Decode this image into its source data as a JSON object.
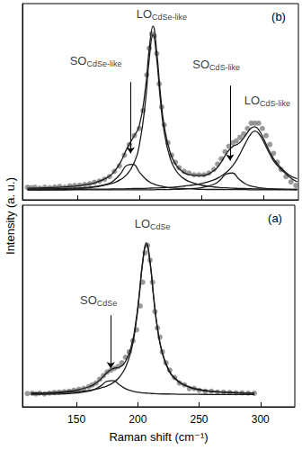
{
  "chart_data": [
    {
      "type": "line",
      "panel_label": "(b)",
      "xlim": [
        106,
        328
      ],
      "xticks": [
        150,
        200,
        250,
        300
      ],
      "ylim": [
        0,
        1.1
      ],
      "yticks": [],
      "tick_labels": false,
      "grid": false,
      "series": [
        {
          "type": "scatter",
          "color": "#7f7f7f",
          "marker": "circle",
          "x": [
            110,
            113,
            116,
            120,
            124,
            128,
            132,
            136,
            140,
            144,
            148,
            152,
            156,
            160,
            164,
            168,
            172,
            176,
            180,
            184,
            188,
            192,
            196,
            200,
            203,
            206,
            208,
            210,
            212,
            214,
            216,
            218,
            220,
            223,
            226,
            229,
            232,
            236,
            240,
            244,
            248,
            252,
            256,
            260,
            263,
            266,
            269,
            272,
            275,
            278,
            281,
            284,
            287,
            290,
            293,
            296,
            299,
            302,
            305,
            308,
            311,
            314,
            318,
            322,
            326
          ],
          "values": [
            0.07,
            0.068,
            0.07,
            0.065,
            0.07,
            0.068,
            0.072,
            0.075,
            0.07,
            0.078,
            0.08,
            0.082,
            0.085,
            0.09,
            0.098,
            0.105,
            0.115,
            0.13,
            0.16,
            0.19,
            0.25,
            0.31,
            0.36,
            0.4,
            0.5,
            0.7,
            0.85,
            0.93,
            0.92,
            0.82,
            0.65,
            0.52,
            0.42,
            0.32,
            0.25,
            0.21,
            0.18,
            0.16,
            0.15,
            0.14,
            0.14,
            0.14,
            0.15,
            0.17,
            0.2,
            0.23,
            0.27,
            0.3,
            0.32,
            0.33,
            0.35,
            0.37,
            0.4,
            0.43,
            0.43,
            0.43,
            0.4,
            0.36,
            0.31,
            0.26,
            0.21,
            0.17,
            0.13,
            0.1,
            0.08
          ]
        },
        {
          "type": "line",
          "color": "#1a1a1a",
          "marker": "none",
          "line_style": "solid",
          "x": [
            110,
            125,
            135,
            145,
            155,
            165,
            175,
            180,
            185,
            190,
            195,
            200,
            205,
            208,
            211,
            214,
            217,
            220,
            225,
            230,
            235,
            240,
            250,
            260,
            265,
            270,
            275,
            280,
            285,
            290,
            293,
            296,
            300,
            305,
            310,
            320,
            327
          ],
          "values": [
            0.065,
            0.067,
            0.07,
            0.075,
            0.083,
            0.097,
            0.128,
            0.16,
            0.212,
            0.287,
            0.348,
            0.416,
            0.629,
            0.847,
            0.973,
            0.83,
            0.593,
            0.416,
            0.261,
            0.191,
            0.157,
            0.141,
            0.136,
            0.164,
            0.202,
            0.258,
            0.298,
            0.316,
            0.357,
            0.402,
            0.409,
            0.393,
            0.342,
            0.269,
            0.211,
            0.141,
            0.118
          ]
        },
        {
          "type": "line",
          "color": "#1a1a1a",
          "marker": "none",
          "line_style": "solid",
          "x": [
            110,
            125,
            135,
            145,
            155,
            165,
            175,
            180,
            185,
            190,
            195,
            200,
            205,
            208,
            211,
            214,
            217,
            220,
            225,
            230,
            235,
            240,
            250,
            260,
            265,
            270,
            275,
            280,
            285,
            290,
            293,
            296,
            300,
            305,
            310,
            320,
            327
          ],
          "values": [
            0.06,
            0.061,
            0.062,
            0.065,
            0.068,
            0.075,
            0.087,
            0.097,
            0.114,
            0.142,
            0.195,
            0.306,
            0.556,
            0.79,
            0.925,
            0.79,
            0.556,
            0.383,
            0.229,
            0.159,
            0.123,
            0.103,
            0.082,
            0.072,
            0.069,
            0.067,
            0.065,
            0.064,
            0.063,
            0.062,
            0.061,
            0.061,
            0.06,
            0.06,
            0.059,
            0.059,
            0.058
          ]
        },
        {
          "type": "line",
          "color": "#1a1a1a",
          "marker": "none",
          "line_style": "solid",
          "x": [
            110,
            125,
            135,
            145,
            155,
            165,
            175,
            180,
            185,
            190,
            195,
            200,
            205,
            208,
            211,
            214,
            217,
            220,
            225,
            230,
            235,
            240,
            250,
            260,
            265,
            270,
            275,
            280,
            285,
            290,
            293,
            296,
            300,
            305,
            310,
            320,
            327
          ],
          "values": [
            0.057,
            0.058,
            0.059,
            0.061,
            0.065,
            0.072,
            0.09,
            0.111,
            0.147,
            0.193,
            0.199,
            0.156,
            0.117,
            0.101,
            0.09,
            0.083,
            0.077,
            0.073,
            0.068,
            0.065,
            0.063,
            0.062,
            0.059,
            0.058,
            0.058,
            0.057,
            0.057,
            0.057,
            0.057,
            0.056,
            0.056,
            0.056,
            0.056,
            0.056,
            0.056,
            0.056,
            0.056
          ]
        },
        {
          "type": "line",
          "color": "#1a1a1a",
          "marker": "none",
          "line_style": "solid",
          "x": [
            110,
            125,
            135,
            145,
            155,
            165,
            175,
            180,
            185,
            190,
            195,
            200,
            205,
            208,
            211,
            214,
            217,
            220,
            225,
            230,
            235,
            240,
            250,
            260,
            265,
            270,
            275,
            280,
            285,
            290,
            293,
            296,
            300,
            305,
            310,
            320,
            327
          ],
          "values": [
            0.055,
            0.055,
            0.055,
            0.056,
            0.056,
            0.056,
            0.056,
            0.056,
            0.056,
            0.056,
            0.056,
            0.056,
            0.056,
            0.056,
            0.056,
            0.057,
            0.057,
            0.057,
            0.058,
            0.059,
            0.06,
            0.062,
            0.068,
            0.087,
            0.111,
            0.145,
            0.15,
            0.117,
            0.091,
            0.077,
            0.072,
            0.068,
            0.065,
            0.062,
            0.061,
            0.059,
            0.058
          ]
        },
        {
          "type": "line",
          "color": "#1a1a1a",
          "marker": "none",
          "line_style": "solid",
          "x": [
            110,
            125,
            135,
            145,
            155,
            165,
            175,
            180,
            185,
            190,
            195,
            200,
            205,
            208,
            211,
            214,
            217,
            220,
            225,
            230,
            235,
            240,
            250,
            260,
            265,
            270,
            275,
            280,
            285,
            290,
            293,
            296,
            300,
            305,
            310,
            320,
            327
          ],
          "values": [
            0.057,
            0.058,
            0.058,
            0.058,
            0.059,
            0.06,
            0.06,
            0.061,
            0.061,
            0.062,
            0.063,
            0.063,
            0.064,
            0.065,
            0.066,
            0.066,
            0.067,
            0.068,
            0.07,
            0.073,
            0.076,
            0.08,
            0.091,
            0.112,
            0.129,
            0.154,
            0.19,
            0.244,
            0.312,
            0.372,
            0.385,
            0.372,
            0.326,
            0.256,
            0.2,
            0.133,
            0.101
          ]
        }
      ],
      "annotations": [
        {
          "text": "SO",
          "sub": "CdSe-like",
          "x": 165,
          "y": 0.78,
          "arrow": {
            "x": 193,
            "from": 0.66,
            "to": 0.26
          }
        },
        {
          "text": "LO",
          "sub": "CdSe-like",
          "x": 218,
          "y": 1.04
        },
        {
          "text": "SO",
          "sub": "CdS-like",
          "x": 262,
          "y": 0.76,
          "arrow": {
            "x": 273,
            "from": 0.64,
            "to": 0.22
          }
        },
        {
          "text": "LO",
          "sub": "CdS-like",
          "x": 303,
          "y": 0.56
        }
      ]
    },
    {
      "type": "line",
      "panel_label": "(a)",
      "xlabel": "Raman shift (cm⁻¹)",
      "ylabel": "Intensity (a. u.)",
      "xlim": [
        106,
        328
      ],
      "xticks": [
        150,
        200,
        250,
        300
      ],
      "ylim": [
        0,
        1.1
      ],
      "yticks": [],
      "tick_labels": "x",
      "grid": false,
      "series": [
        {
          "type": "scatter",
          "color": "#7f7f7f",
          "marker": "circle",
          "x": [
            110,
            114,
            117,
            120,
            124,
            128,
            132,
            136,
            140,
            144,
            148,
            152,
            156,
            160,
            163,
            166,
            169,
            172,
            175,
            178,
            181,
            184,
            187,
            190,
            193,
            196,
            199,
            202,
            204,
            206,
            208,
            210,
            212,
            214,
            216,
            218,
            220,
            223,
            226,
            230,
            234,
            238,
            242,
            246,
            250,
            255,
            260,
            265,
            270,
            275,
            280,
            285,
            290,
            295
          ],
          "values": [
            0.072,
            0.074,
            0.07,
            0.075,
            0.07,
            0.075,
            0.078,
            0.08,
            0.082,
            0.085,
            0.09,
            0.095,
            0.1,
            0.11,
            0.12,
            0.13,
            0.15,
            0.17,
            0.19,
            0.2,
            0.21,
            0.22,
            0.24,
            0.27,
            0.3,
            0.36,
            0.42,
            0.55,
            0.68,
            0.84,
            0.88,
            0.8,
            0.68,
            0.52,
            0.43,
            0.38,
            0.3,
            0.24,
            0.2,
            0.16,
            0.13,
            0.12,
            0.1,
            0.1,
            0.09,
            0.085,
            0.085,
            0.08,
            0.08,
            0.078,
            0.076,
            0.076,
            0.075,
            0.074
          ]
        },
        {
          "type": "line",
          "color": "#1a1a1a",
          "marker": "none",
          "line_style": "solid",
          "x": [
            113,
            130,
            140,
            150,
            160,
            165,
            170,
            175,
            180,
            185,
            190,
            195,
            198,
            201,
            204,
            207,
            210,
            213,
            216,
            220,
            225,
            230,
            240,
            250,
            260,
            270,
            280,
            295
          ],
          "values": [
            0.075,
            0.078,
            0.083,
            0.091,
            0.108,
            0.125,
            0.152,
            0.187,
            0.209,
            0.216,
            0.248,
            0.339,
            0.444,
            0.604,
            0.795,
            0.895,
            0.792,
            0.597,
            0.433,
            0.295,
            0.205,
            0.158,
            0.114,
            0.095,
            0.085,
            0.08,
            0.077,
            0.075
          ]
        },
        {
          "type": "line",
          "color": "#1a1a1a",
          "marker": "none",
          "line_style": "solid",
          "x": [
            113,
            130,
            140,
            150,
            160,
            165,
            170,
            175,
            180,
            185,
            190,
            195,
            198,
            201,
            204,
            207,
            210,
            213,
            216,
            220,
            225,
            230,
            240,
            250,
            260,
            270,
            280,
            295
          ],
          "values": [
            0.073,
            0.075,
            0.078,
            0.082,
            0.089,
            0.095,
            0.103,
            0.114,
            0.132,
            0.162,
            0.215,
            0.318,
            0.428,
            0.591,
            0.785,
            0.886,
            0.785,
            0.591,
            0.428,
            0.291,
            0.201,
            0.155,
            0.112,
            0.093,
            0.084,
            0.079,
            0.076,
            0.074
          ]
        },
        {
          "type": "line",
          "color": "#1a1a1a",
          "marker": "none",
          "line_style": "solid",
          "x": [
            113,
            130,
            140,
            150,
            160,
            165,
            170,
            175,
            180,
            185,
            190,
            195,
            198,
            201,
            204,
            207,
            210,
            213,
            216,
            220,
            225,
            230,
            240,
            250,
            260,
            270,
            280,
            295
          ],
          "values": [
            0.068,
            0.069,
            0.071,
            0.075,
            0.085,
            0.096,
            0.115,
            0.139,
            0.143,
            0.12,
            0.099,
            0.087,
            0.082,
            0.079,
            0.076,
            0.075,
            0.073,
            0.072,
            0.071,
            0.07,
            0.07,
            0.069,
            0.068,
            0.068,
            0.067,
            0.067,
            0.067,
            0.067
          ]
        }
      ],
      "annotations": [
        {
          "text": "SO",
          "sub": "CdSe",
          "x": 168,
          "y": 0.58,
          "arrow": {
            "x": 178,
            "from": 0.5,
            "to": 0.21
          }
        },
        {
          "text": "LO",
          "sub": "CdSe",
          "x": 212,
          "y": 1.0
        }
      ]
    }
  ]
}
